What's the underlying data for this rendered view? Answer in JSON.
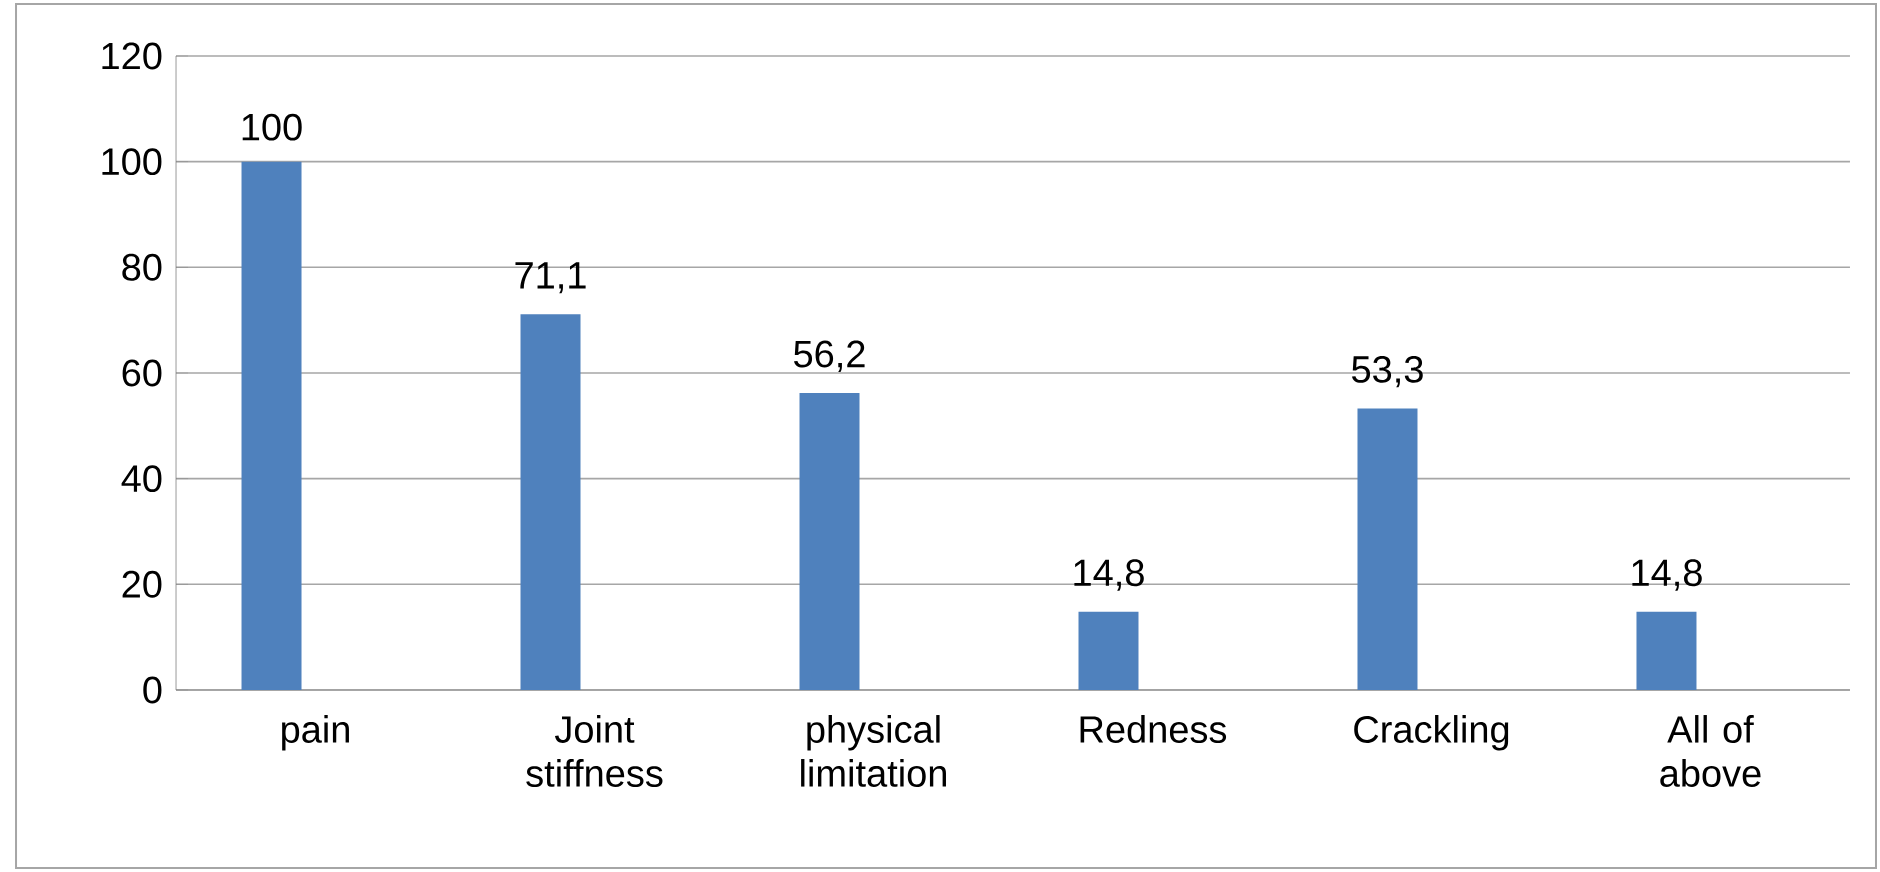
{
  "chart_data": {
    "type": "bar",
    "categories": [
      "pain",
      "Joint stiffness",
      "physical limitation",
      "Redness",
      "Crackling",
      "All of above"
    ],
    "values": [
      100,
      71.1,
      56.2,
      14.8,
      53.3,
      14.8
    ],
    "value_labels": [
      "100",
      "71,1",
      "56,2",
      "14,8",
      "53,3",
      "14,8"
    ],
    "color": "#4f81bd",
    "ylim": [
      0,
      120
    ],
    "yticks": [
      0,
      20,
      40,
      60,
      80,
      100,
      120
    ],
    "grid": "y"
  }
}
